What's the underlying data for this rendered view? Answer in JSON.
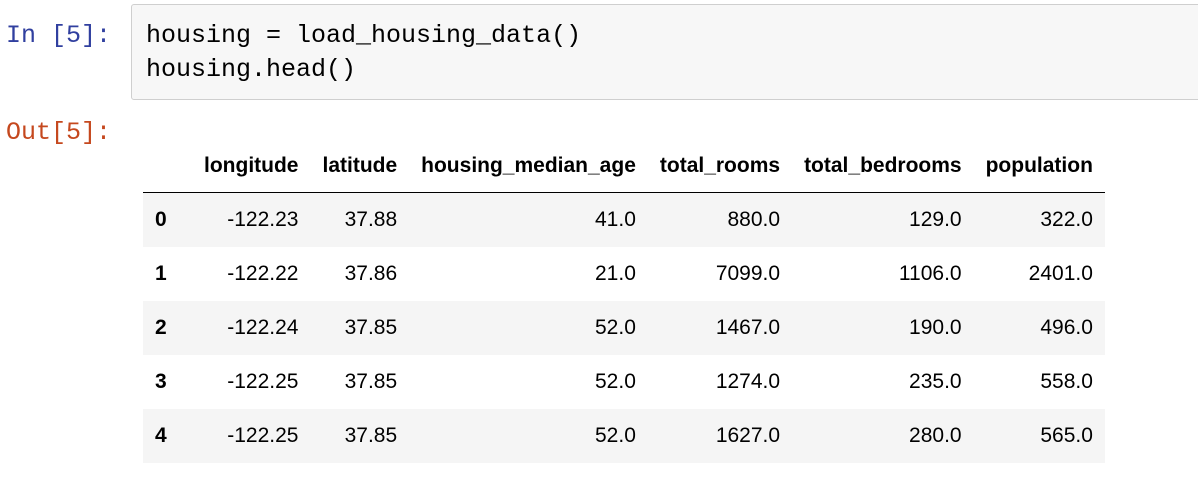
{
  "cell": {
    "in_prompt": "In [5]:",
    "out_prompt": "Out[5]:",
    "code_lines": [
      "housing = load_housing_data()",
      "housing.head()"
    ]
  },
  "table": {
    "columns": [
      "",
      "longitude",
      "latitude",
      "housing_median_age",
      "total_rooms",
      "total_bedrooms",
      "population"
    ],
    "rows": [
      {
        "index": "0",
        "cells": [
          "-122.23",
          "37.88",
          "41.0",
          "880.0",
          "129.0",
          "322.0"
        ]
      },
      {
        "index": "1",
        "cells": [
          "-122.22",
          "37.86",
          "21.0",
          "7099.0",
          "1106.0",
          "2401.0"
        ]
      },
      {
        "index": "2",
        "cells": [
          "-122.24",
          "37.85",
          "52.0",
          "1467.0",
          "190.0",
          "496.0"
        ]
      },
      {
        "index": "3",
        "cells": [
          "-122.25",
          "37.85",
          "52.0",
          "1274.0",
          "235.0",
          "558.0"
        ]
      },
      {
        "index": "4",
        "cells": [
          "-122.25",
          "37.85",
          "52.0",
          "1627.0",
          "280.0",
          "565.0"
        ]
      }
    ]
  },
  "colors": {
    "in_prompt": "#303f9f",
    "out_prompt": "#c5481e",
    "input_background": "#f7f7f7",
    "input_border": "#cfcfcf",
    "stripe": "#f5f5f5"
  }
}
